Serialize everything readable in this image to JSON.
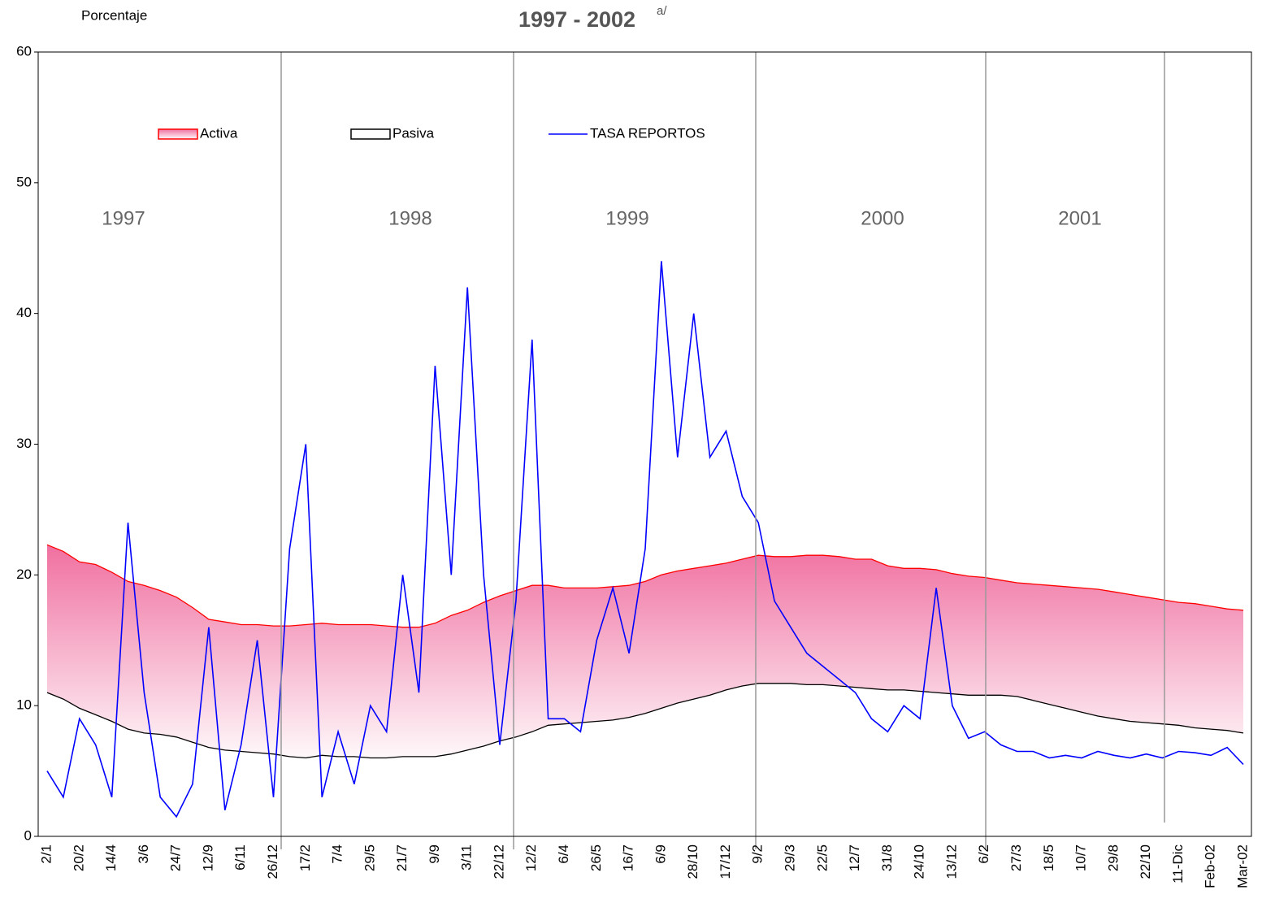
{
  "chart_data": {
    "type": "line",
    "title": "1997 - 2002",
    "title_note": "a/",
    "ylabel": "Porcentaje",
    "annotations": [
      "1997",
      "1998",
      "1999",
      "2000",
      "2001"
    ],
    "categories": [
      "2/1",
      null,
      "20/2",
      null,
      "14/4",
      null,
      "3/6",
      null,
      "24/7",
      null,
      "12/9",
      null,
      "6/11",
      null,
      "26/12",
      null,
      "17/2",
      null,
      "7/4",
      null,
      "29/5",
      null,
      "21/7",
      null,
      "9/9",
      null,
      "3/11",
      null,
      "22/12",
      null,
      "12/2",
      null,
      "6/4",
      null,
      "26/5",
      null,
      "16/7",
      null,
      "6/9",
      null,
      "28/10",
      null,
      "17/12",
      null,
      "9/2",
      null,
      "29/3",
      null,
      "22/5",
      null,
      "12/7",
      null,
      "31/8",
      null,
      "24/10",
      null,
      "13/12",
      null,
      "6/2",
      null,
      "27/3",
      null,
      "18/5",
      null,
      "10/7",
      null,
      "29/8",
      null,
      "22/10",
      null,
      "11-Dic",
      null,
      "Feb-02",
      null,
      "Mar-02"
    ],
    "series": [
      {
        "name": "Activa",
        "color": "#ff0000",
        "fill": "#f070a0",
        "values": [
          22.3,
          21.8,
          21,
          20.8,
          20.2,
          19.5,
          19.2,
          18.8,
          18.3,
          17.5,
          16.6,
          16.4,
          16.2,
          16.2,
          16.1,
          16.1,
          16.2,
          16.3,
          16.2,
          16.2,
          16.2,
          16.1,
          16,
          16,
          16.3,
          16.9,
          17.3,
          17.9,
          18.4,
          18.8,
          19.2,
          19.2,
          19,
          19,
          19,
          19.1,
          19.2,
          19.5,
          20,
          20.3,
          20.5,
          20.7,
          20.9,
          21.2,
          21.5,
          21.4,
          21.4,
          21.5,
          21.5,
          21.4,
          21.2,
          21.2,
          20.7,
          20.5,
          20.5,
          20.4,
          20.1,
          19.9,
          19.8,
          19.6,
          19.4,
          19.3,
          19.2,
          19.1,
          19,
          18.9,
          18.7,
          18.5,
          18.3,
          18.1,
          17.9,
          17.8,
          17.6,
          17.4,
          17.3
        ]
      },
      {
        "name": "Pasiva",
        "color": "#000000",
        "values": [
          11,
          10.5,
          9.8,
          9.3,
          8.8,
          8.2,
          7.9,
          7.8,
          7.6,
          7.2,
          6.8,
          6.6,
          6.5,
          6.4,
          6.3,
          6.1,
          6,
          6.2,
          6.1,
          6.1,
          6,
          6,
          6.1,
          6.1,
          6.1,
          6.3,
          6.6,
          6.9,
          7.3,
          7.6,
          8,
          8.5,
          8.6,
          8.7,
          8.8,
          8.9,
          9.1,
          9.4,
          9.8,
          10.2,
          10.5,
          10.8,
          11.2,
          11.5,
          11.7,
          11.7,
          11.7,
          11.6,
          11.6,
          11.5,
          11.4,
          11.3,
          11.2,
          11.2,
          11.1,
          11,
          10.9,
          10.8,
          10.8,
          10.8,
          10.7,
          10.4,
          10.1,
          9.8,
          9.5,
          9.2,
          9,
          8.8,
          8.7,
          8.6,
          8.5,
          8.3,
          8.2,
          8.1,
          7.9
        ]
      },
      {
        "name": "TASA REPORTOS",
        "color": "#0000ff",
        "values": [
          5,
          3,
          9,
          7,
          3,
          24,
          11,
          3,
          1.5,
          4,
          16,
          2,
          7,
          15,
          3,
          22,
          30,
          3,
          8,
          4,
          10,
          8,
          20,
          11,
          36,
          20,
          42,
          20,
          7,
          18,
          38,
          9,
          9,
          8,
          15,
          19,
          14,
          22,
          44,
          29,
          40,
          29,
          31,
          26,
          24,
          18,
          16,
          14,
          13,
          12,
          11,
          9,
          8,
          10,
          9,
          19,
          10,
          7.5,
          8,
          7,
          6.5,
          6.5,
          6,
          6.2,
          6,
          6.5,
          6.2,
          6,
          6.3,
          6,
          6.5,
          6.4,
          6.2,
          6.8,
          5.5
        ]
      }
    ],
    "ylim": [
      0,
      60
    ],
    "yticks": [
      0,
      10,
      20,
      30,
      40,
      50,
      60
    ],
    "grid": false,
    "legend": "top"
  }
}
